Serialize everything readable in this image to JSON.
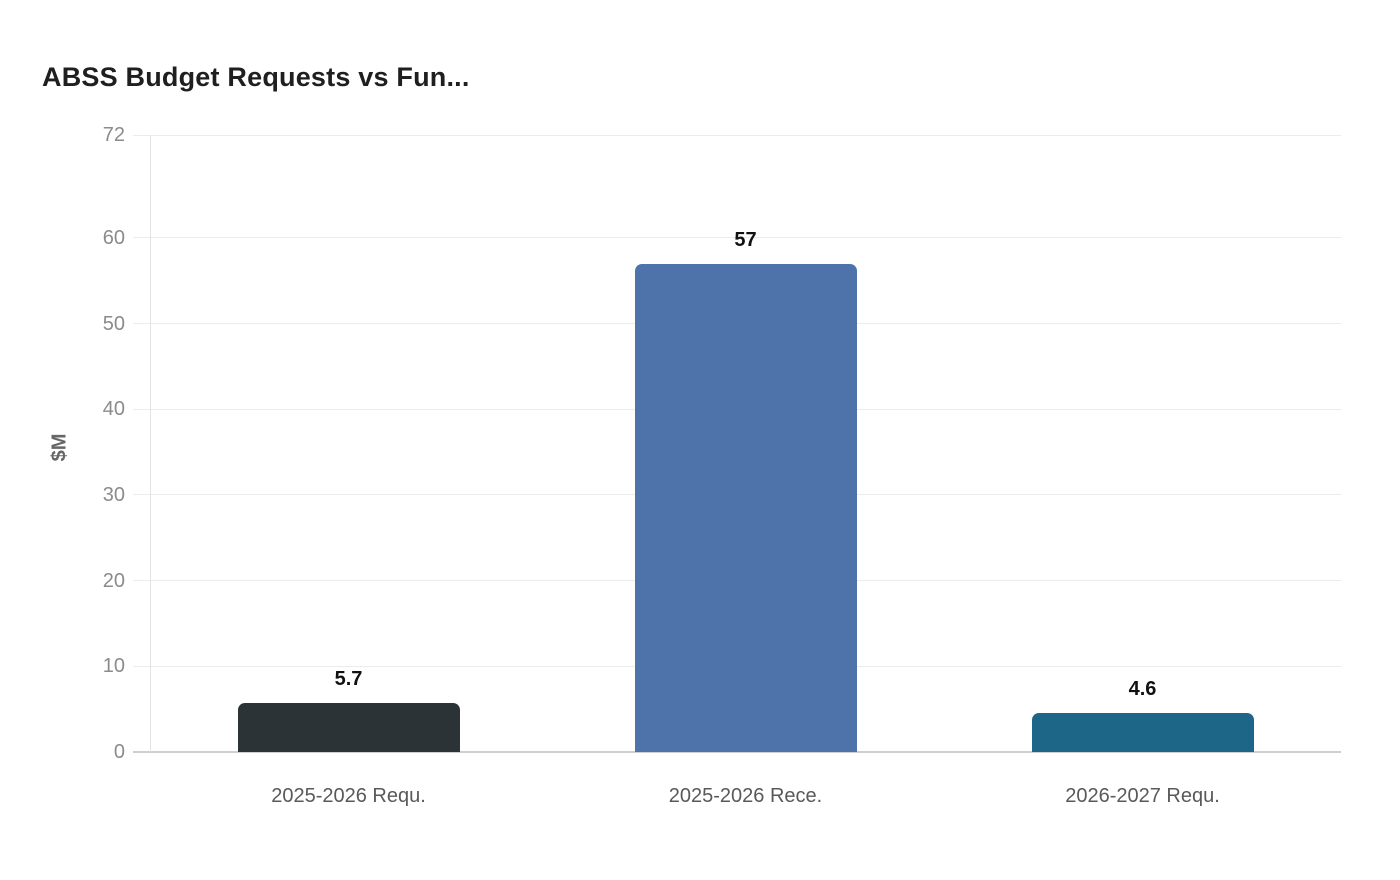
{
  "chart_data": {
    "type": "bar",
    "title": "ABSS Budget Requests vs Fun...",
    "ylabel": "$M",
    "xlabel": "",
    "categories": [
      "2025-2026 Requ.",
      "2025-2026 Rece.",
      "2026-2027 Requ."
    ],
    "values": [
      5.7,
      57,
      4.6
    ],
    "value_labels": [
      "5.7",
      "57",
      "4.6"
    ],
    "bar_colors": [
      "#2b3337",
      "#4d73aa",
      "#1e6688"
    ],
    "yticks": [
      0,
      10,
      20,
      30,
      40,
      50,
      60,
      72
    ],
    "ylim": [
      0,
      72
    ],
    "grid": "horizontal-only",
    "legend": "none",
    "colors": {
      "background": "#ffffff",
      "title_text": "#1f1f1f",
      "tick_text": "#8b8b8b",
      "category_text": "#595959",
      "value_text": "#111111",
      "gridline": "#ececec",
      "baseline": "#cfcfcf",
      "y_axis_line": "#e3e3e3"
    }
  }
}
